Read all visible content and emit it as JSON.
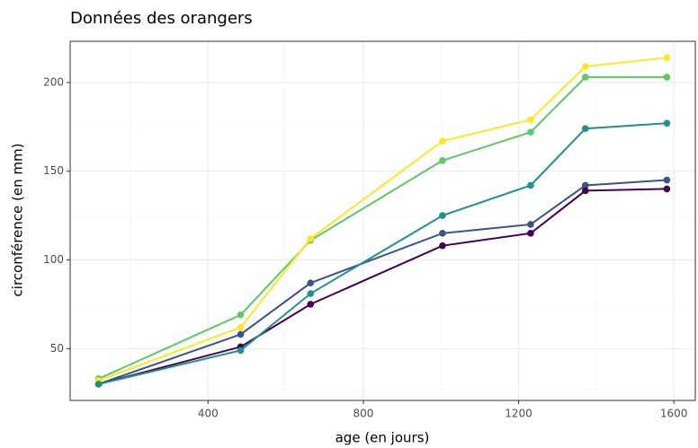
{
  "chart_data": {
    "type": "line",
    "title": "Données des orangers",
    "x_label": "age (en jours)",
    "y_label": "circonférence (en mm)",
    "x": [
      118,
      484,
      664,
      1004,
      1231,
      1372,
      1582
    ],
    "series": [
      {
        "color": "#3B528B",
        "values": [
          30,
          58,
          87,
          115,
          120,
          142,
          145
        ]
      },
      {
        "color": "#5DC863",
        "values": [
          33,
          69,
          111,
          156,
          172,
          203,
          203
        ]
      },
      {
        "color": "#440154",
        "values": [
          30,
          51,
          75,
          108,
          115,
          139,
          140
        ]
      },
      {
        "color": "#FDE725",
        "values": [
          32,
          62,
          112,
          167,
          179,
          209,
          214
        ]
      },
      {
        "color": "#21908C",
        "values": [
          30,
          49,
          81,
          125,
          142,
          174,
          177
        ]
      }
    ],
    "xlim": [
      44.8,
      1655.2
    ],
    "ylim": [
      20.8,
      223.2
    ],
    "xticks": [
      400,
      800,
      1200,
      1600
    ],
    "yticks": [
      50,
      100,
      150,
      200
    ],
    "xminorticks": [
      200,
      600,
      1000,
      1400
    ],
    "yminorticks": [
      25,
      75,
      125,
      175
    ],
    "grid": true
  }
}
